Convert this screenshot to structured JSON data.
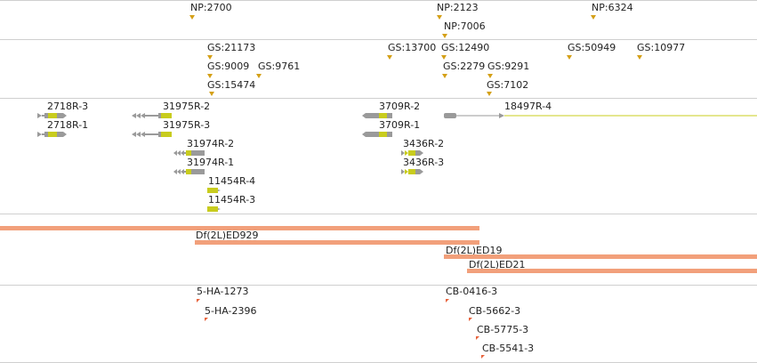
{
  "colors": {
    "marker": "#d4a017",
    "exon_grey": "#9a9a9a",
    "exon_yellow": "#c8cc1e",
    "deletion": "#f2a07b",
    "insertion": "#e8633c",
    "track_line": "#cfcfcf"
  },
  "np_track": {
    "labels": [
      "NP:2700",
      "NP:2123",
      "NP:7006",
      "NP:6324"
    ]
  },
  "gs_track": {
    "labels": [
      "GS:21173",
      "GS:9009",
      "GS:9761",
      "GS:15474",
      "GS:13700",
      "GS:12490",
      "GS:2279",
      "GS:9291",
      "GS:7102",
      "GS:50949",
      "GS:10977"
    ]
  },
  "transcripts": {
    "labels": [
      "2718R-3",
      "2718R-1",
      "31975R-2",
      "31975R-3",
      "31974R-2",
      "31974R-1",
      "11454R-4",
      "11454R-3",
      "3709R-2",
      "3709R-1",
      "3436R-2",
      "3436R-3",
      "18497R-4"
    ]
  },
  "deficiencies": {
    "labels": [
      "Df(2L)ED929",
      "Df(2L)ED19",
      "Df(2L)ED21"
    ]
  },
  "insertions": {
    "labels": [
      "5-HA-1273",
      "5-HA-2396",
      "CB-0416-3",
      "CB-5662-3",
      "CB-5775-3",
      "CB-5541-3"
    ]
  }
}
